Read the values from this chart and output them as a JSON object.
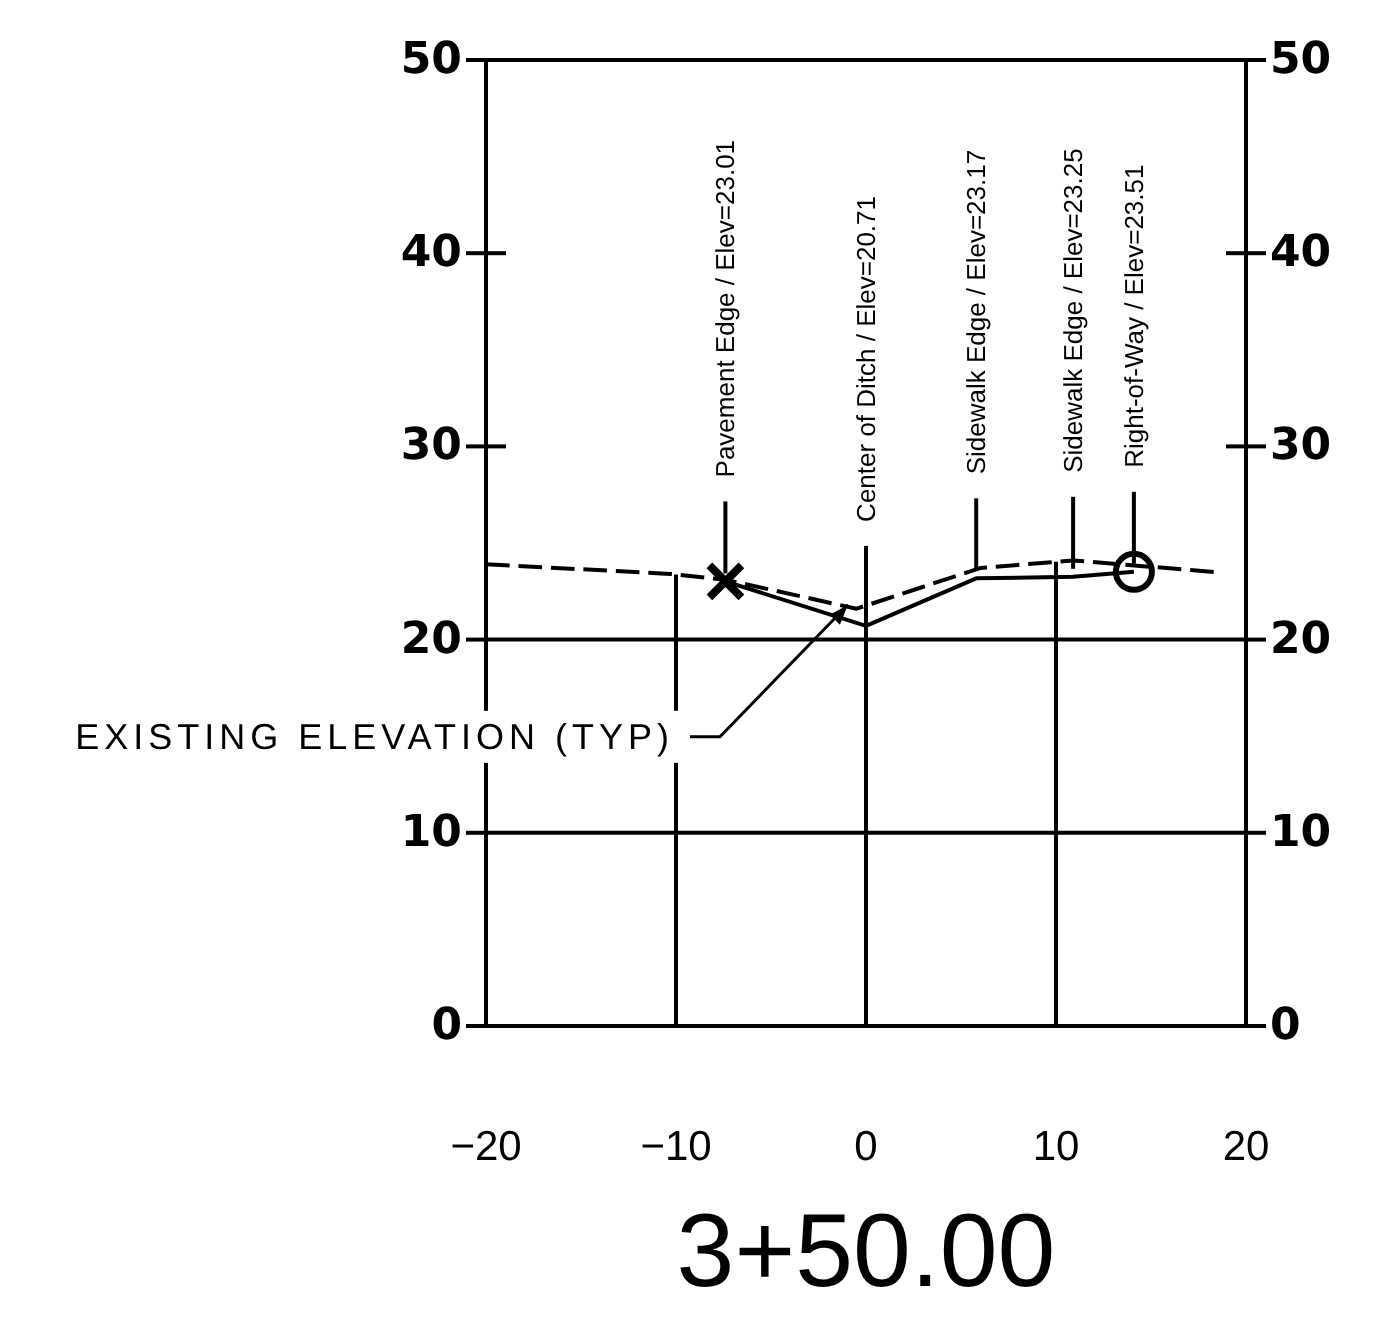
{
  "chart_data": {
    "type": "line",
    "xlabel": "3+50.00",
    "xlim": [
      -20,
      20
    ],
    "xticks": [
      {
        "value": -20,
        "label": "−20"
      },
      {
        "value": -10,
        "label": "−10"
      },
      0,
      10,
      20
    ],
    "ylim": [
      0,
      50
    ],
    "yticks": [
      0,
      10,
      20,
      30,
      40,
      50
    ],
    "y2lim": [
      0,
      50
    ],
    "y2ticks": [
      0,
      10,
      20,
      30,
      40,
      50
    ],
    "ref_lines": [
      {
        "axis": "x",
        "value": -10
      },
      {
        "axis": "x",
        "value": 0
      },
      {
        "axis": "x",
        "value": 10
      },
      {
        "axis": "y",
        "value": 10
      },
      {
        "axis": "y",
        "value": 20
      }
    ],
    "series": [
      {
        "line_style": "dashed",
        "color": "#000000",
        "x": [
          -20,
          -10.3,
          -7.4,
          -0.5,
          6,
          10.9,
          18.3
        ],
        "values": [
          23.9,
          23.4,
          23.1,
          21.6,
          23.7,
          24.1,
          23.5
        ]
      },
      {
        "line_style": "solid",
        "color": "#000000",
        "x": [
          -7.4,
          0,
          5.8,
          10.9,
          14.1
        ],
        "values": [
          23.01,
          20.71,
          23.17,
          23.25,
          23.51
        ]
      },
      {
        "type": "scatter",
        "marker": "cross",
        "color": "#000000",
        "x": [
          -7.4
        ],
        "values": [
          23.01
        ]
      },
      {
        "type": "scatter",
        "marker": "circle",
        "color": "#000000",
        "x": [
          14.1
        ],
        "values": [
          23.51
        ]
      }
    ],
    "annotations": [
      {
        "text": "Pavement Edge / Elev=23.01",
        "x": -7.4,
        "y": 23.01
      },
      {
        "text": "Center of Ditch / Elev=20.71",
        "x": 0,
        "y": 20.71
      },
      {
        "text": "Sidewalk Edge / Elev=23.17",
        "x": 5.8,
        "y": 23.17
      },
      {
        "text": "Sidewalk Edge / Elev=23.25",
        "x": 10.9,
        "y": 23.25
      },
      {
        "text": "Right-of-Way / Elev=23.51",
        "x": 14.1,
        "y": 23.51
      },
      {
        "text": "EXISTING ELEVATION (TYP)",
        "x": -0.95,
        "y": 21.8
      }
    ]
  }
}
